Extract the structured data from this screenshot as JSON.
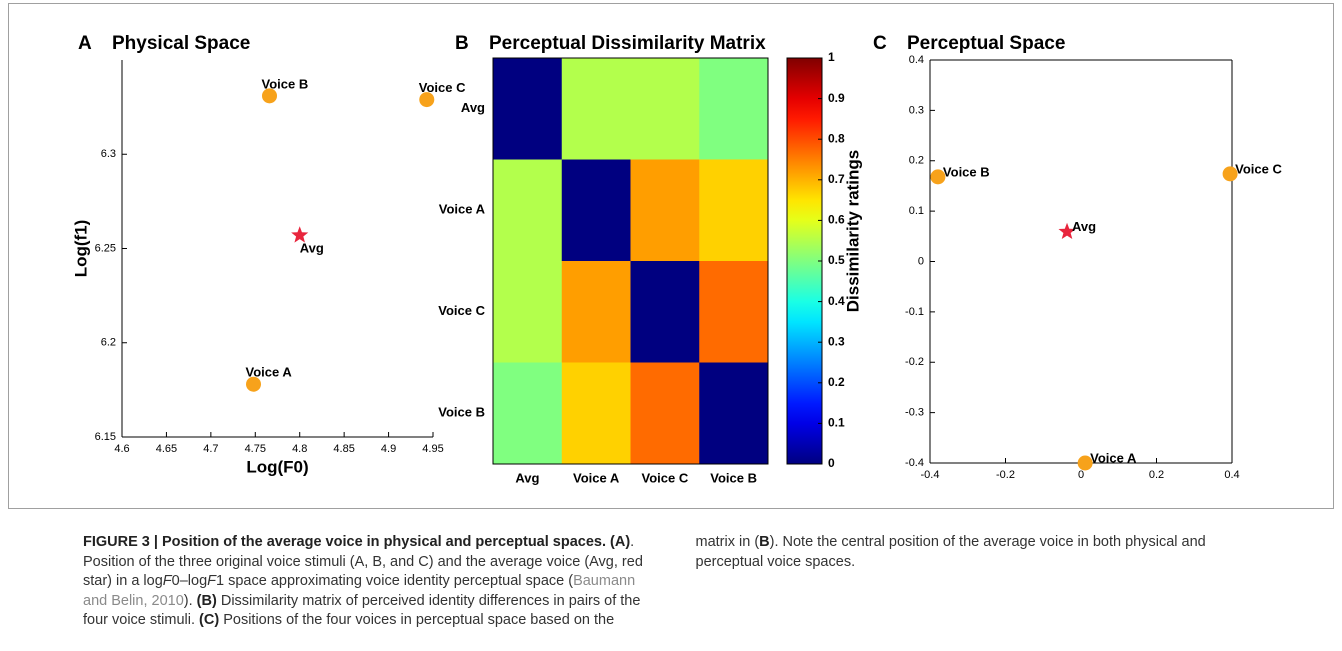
{
  "chart_data": [
    {
      "type": "scatter",
      "panel": "A",
      "title": "Physical Space",
      "x_label": "Log(F0)",
      "y_label": "Log(f1)",
      "xlim": [
        4.6,
        4.95
      ],
      "xticks": [
        4.6,
        4.65,
        4.7,
        4.75,
        4.8,
        4.85,
        4.9,
        4.95
      ],
      "ylim": [
        6.15,
        6.35
      ],
      "yticks": [
        6.15,
        6.2,
        6.25,
        6.3
      ],
      "box": false,
      "points": [
        {
          "label": "Voice B",
          "x": 4.766,
          "y": 6.331,
          "marker": "circle",
          "color": "#f7a21b"
        },
        {
          "label": "Voice C",
          "x": 4.943,
          "y": 6.329,
          "marker": "circle",
          "color": "#f7a21b"
        },
        {
          "label": "Avg",
          "x": 4.8,
          "y": 6.257,
          "marker": "star",
          "color": "#e8253d"
        },
        {
          "label": "Voice A",
          "x": 4.748,
          "y": 6.178,
          "marker": "circle",
          "color": "#f7a21b"
        }
      ]
    },
    {
      "type": "heatmap",
      "panel": "B",
      "title": "Perceptual Dissimilarity Matrix",
      "rows": [
        "Avg",
        "Voice A",
        "Voice C",
        "Voice B"
      ],
      "columns": [
        "Avg",
        "Voice A",
        "Voice C",
        "Voice B"
      ],
      "values": [
        [
          0,
          0.55,
          0.55,
          0.5
        ],
        [
          0.55,
          0,
          0.72,
          0.67
        ],
        [
          0.55,
          0.72,
          0,
          0.77
        ],
        [
          0.5,
          0.67,
          0.77,
          0
        ]
      ],
      "colormap": "jet",
      "clim": [
        0,
        1
      ],
      "colorbar_label": "Dissimilarity ratings",
      "colorbar_ticks": [
        0,
        0.1,
        0.2,
        0.3,
        0.4,
        0.5,
        0.6,
        0.7,
        0.8,
        0.9,
        1
      ]
    },
    {
      "type": "scatter",
      "panel": "C",
      "title": "Perceptual Space",
      "xlim": [
        -0.4,
        0.4
      ],
      "xticks": [
        -0.4,
        -0.2,
        0,
        0.2,
        0.4
      ],
      "ylim": [
        -0.4,
        0.4
      ],
      "yticks": [
        -0.4,
        -0.3,
        -0.2,
        -0.1,
        0,
        0.1,
        0.2,
        0.3,
        0.4
      ],
      "box": true,
      "points": [
        {
          "label": "Voice B",
          "x": -0.379,
          "y": 0.168,
          "marker": "circle",
          "color": "#f7a21b"
        },
        {
          "label": "Voice C",
          "x": 0.395,
          "y": 0.174,
          "marker": "circle",
          "color": "#f7a21b"
        },
        {
          "label": "Avg",
          "x": -0.037,
          "y": 0.059,
          "marker": "star",
          "color": "#e8253d"
        },
        {
          "label": "Voice A",
          "x": 0.011,
          "y": -0.4,
          "marker": "circle",
          "color": "#f7a21b"
        }
      ]
    }
  ],
  "caption": {
    "segments": [
      {
        "text": "FIGURE 3 | Position of the average voice in physical and perceptual spaces.",
        "style": "bold"
      },
      {
        "text": " ",
        "style": "plain"
      },
      {
        "text": "(A)",
        "style": "bold"
      },
      {
        "text": ". Position of the three original voice stimuli (A, B, and C) and the average voice (Avg, red star) in a log",
        "style": "plain"
      },
      {
        "text": "F",
        "style": "italic"
      },
      {
        "text": "0–log",
        "style": "plain"
      },
      {
        "text": "F",
        "style": "italic"
      },
      {
        "text": "1 space approximating voice identity perceptual space (",
        "style": "plain"
      },
      {
        "text": "Baumann and Belin, 2010",
        "style": "link"
      },
      {
        "text": "). ",
        "style": "plain"
      },
      {
        "text": "(B)",
        "style": "bold"
      },
      {
        "text": " Dissimilarity matrix of perceived identity differences in pairs of the four voice stimuli. ",
        "style": "plain"
      },
      {
        "text": "(C)",
        "style": "bold"
      },
      {
        "text": " Positions of the four voices in perceptual space based on the matrix in (",
        "style": "plain"
      },
      {
        "text": "B",
        "style": "bold"
      },
      {
        "text": "). Note the central position of the average voice in both physical and perceptual voice spaces.",
        "style": "plain"
      }
    ]
  }
}
